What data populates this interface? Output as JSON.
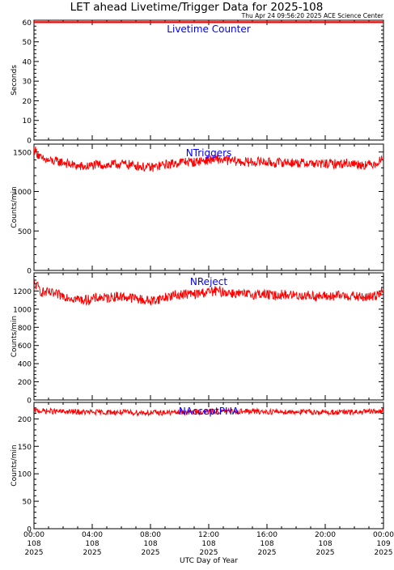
{
  "header": {
    "title": "LET ahead Livetime/Trigger Data for 2025-108",
    "subtitle": "Thu Apr 24 09:56:20 2025 ACE Science Center"
  },
  "xaxis": {
    "label": "UTC Day of Year",
    "ticks": [
      {
        "t": 0,
        "lines": [
          "00:00",
          "108",
          "2025"
        ]
      },
      {
        "t": 4,
        "lines": [
          "04:00",
          "108",
          "2025"
        ]
      },
      {
        "t": 8,
        "lines": [
          "08:00",
          "108",
          "2025"
        ]
      },
      {
        "t": 12,
        "lines": [
          "12:00",
          "108",
          "2025"
        ]
      },
      {
        "t": 16,
        "lines": [
          "16:00",
          "108",
          "2025"
        ]
      },
      {
        "t": 20,
        "lines": [
          "20:00",
          "108",
          "2025"
        ]
      },
      {
        "t": 24,
        "lines": [
          "00:00",
          "109",
          "2025"
        ]
      }
    ]
  },
  "colors": {
    "series": "#ff0000",
    "label": "#0000ff",
    "axis": "#000000"
  },
  "chart_data": [
    {
      "type": "line",
      "title": "Livetime Counter",
      "ylabel": "Seconds",
      "ylim": [
        0,
        61
      ],
      "yticks": [
        0,
        10,
        20,
        30,
        40,
        50,
        60
      ],
      "xlim": [
        0,
        24
      ],
      "series": [
        {
          "x": [
            0,
            24
          ],
          "y": [
            60,
            60
          ]
        }
      ]
    },
    {
      "type": "line",
      "title": "NTriggers",
      "ylabel": "Counts/min",
      "ylim": [
        0,
        1600
      ],
      "yticks": [
        0,
        500,
        1000,
        1500
      ],
      "xlim": [
        0,
        24
      ],
      "series": [
        {
          "x": [
            0,
            0.25,
            0.5,
            1,
            1.5,
            2,
            2.5,
            3,
            3.5,
            4,
            4.5,
            5,
            5.5,
            6,
            6.5,
            7,
            7.5,
            8,
            8.5,
            9,
            9.5,
            10,
            10.5,
            11,
            11.5,
            12,
            12.5,
            13,
            13.5,
            14,
            14.5,
            15,
            15.5,
            16,
            16.5,
            17,
            17.5,
            18,
            18.5,
            19,
            19.5,
            20,
            20.5,
            21,
            21.5,
            22,
            22.5,
            23,
            23.5,
            24
          ],
          "y": [
            1540,
            1480,
            1410,
            1390,
            1380,
            1370,
            1340,
            1320,
            1310,
            1330,
            1340,
            1330,
            1340,
            1350,
            1340,
            1330,
            1310,
            1300,
            1320,
            1340,
            1350,
            1370,
            1380,
            1370,
            1390,
            1400,
            1410,
            1400,
            1390,
            1380,
            1370,
            1370,
            1380,
            1370,
            1360,
            1370,
            1370,
            1360,
            1360,
            1360,
            1350,
            1350,
            1350,
            1350,
            1360,
            1350,
            1340,
            1340,
            1360,
            1420
          ]
        }
      ]
    },
    {
      "type": "line",
      "title": "NReject",
      "ylabel": "Counts/min",
      "ylim": [
        0,
        1400
      ],
      "yticks": [
        0,
        200,
        400,
        600,
        800,
        1000,
        1200
      ],
      "xlim": [
        0,
        24
      ],
      "series": [
        {
          "x": [
            0,
            0.25,
            0.5,
            1,
            1.5,
            2,
            2.5,
            3,
            3.5,
            4,
            4.5,
            5,
            5.5,
            6,
            6.5,
            7,
            7.5,
            8,
            8.5,
            9,
            9.5,
            10,
            10.5,
            11,
            11.5,
            12,
            12.5,
            13,
            13.5,
            14,
            14.5,
            15,
            15.5,
            16,
            16.5,
            17,
            17.5,
            18,
            18.5,
            19,
            19.5,
            20,
            20.5,
            21,
            21.5,
            22,
            22.5,
            23,
            23.5,
            24
          ],
          "y": [
            1280,
            1250,
            1190,
            1180,
            1160,
            1150,
            1130,
            1110,
            1100,
            1110,
            1130,
            1120,
            1140,
            1140,
            1130,
            1120,
            1100,
            1090,
            1110,
            1130,
            1150,
            1160,
            1170,
            1160,
            1180,
            1190,
            1200,
            1190,
            1180,
            1170,
            1160,
            1160,
            1170,
            1160,
            1150,
            1160,
            1160,
            1150,
            1150,
            1150,
            1140,
            1140,
            1140,
            1150,
            1150,
            1140,
            1130,
            1130,
            1150,
            1230
          ]
        }
      ]
    },
    {
      "type": "line",
      "title": "NAcceptPHA",
      "ylabel": "Counts/min",
      "ylim": [
        0,
        230
      ],
      "yticks": [
        0,
        50,
        100,
        150,
        200
      ],
      "xlim": [
        0,
        24
      ],
      "series": [
        {
          "x": [
            0,
            2,
            4,
            6,
            8,
            10,
            12,
            14,
            16,
            18,
            20,
            22,
            24
          ],
          "y": [
            215,
            213,
            212,
            212,
            211,
            212,
            213,
            214,
            213,
            213,
            212,
            212,
            214
          ]
        }
      ]
    }
  ]
}
